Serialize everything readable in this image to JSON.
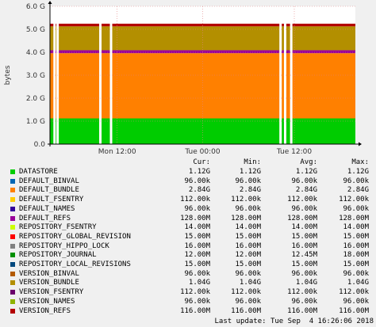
{
  "chart_data": {
    "type": "area",
    "title": "",
    "ylabel": "bytes",
    "xlabel": "",
    "ylim": [
      0,
      6.0
    ],
    "y_unit": "G",
    "y_ticks": [
      "0.0",
      "1.0 G",
      "2.0 G",
      "3.0 G",
      "4.0 G",
      "5.0 G",
      "6.0 G"
    ],
    "y_tick_values": [
      0,
      1,
      2,
      3,
      4,
      5,
      6
    ],
    "x_ticks": [
      "Mon 12:00",
      "Tue 00:00",
      "Tue 12:00"
    ],
    "x_tick_positions": [
      0.22,
      0.5,
      0.8
    ],
    "grid": true,
    "gap_positions": [
      0.015,
      0.025,
      0.165,
      0.2,
      0.755,
      0.77,
      0.79
    ],
    "stack_order": [
      "DATASTORE",
      "DEFAULT_BUNDLE",
      "DEFAULT_REFS",
      "VERSION_BUNDLE",
      "VERSION_REFS"
    ],
    "stack_values_g": [
      1.12,
      2.84,
      0.128,
      1.04,
      0.116
    ],
    "headers": {
      "cur": "Cur:",
      "min": "Min:",
      "avg": "Avg:",
      "max": "Max:"
    },
    "series": [
      {
        "name": "DATASTORE",
        "color": "#00cc00",
        "cur": "1.12G",
        "min": "1.12G",
        "avg": "1.12G",
        "max": "1.12G"
      },
      {
        "name": "DEFAULT_BINVAL",
        "color": "#0066b3",
        "cur": "96.00k",
        "min": "96.00k",
        "avg": "96.00k",
        "max": "96.00k"
      },
      {
        "name": "DEFAULT_BUNDLE",
        "color": "#ff8000",
        "cur": "2.84G",
        "min": "2.84G",
        "avg": "2.84G",
        "max": "2.84G"
      },
      {
        "name": "DEFAULT_FSENTRY",
        "color": "#ffcc00",
        "cur": "112.00k",
        "min": "112.00k",
        "avg": "112.00k",
        "max": "112.00k"
      },
      {
        "name": "DEFAULT_NAMES",
        "color": "#330099",
        "cur": "96.00k",
        "min": "96.00k",
        "avg": "96.00k",
        "max": "96.00k"
      },
      {
        "name": "DEFAULT_REFS",
        "color": "#990099",
        "cur": "128.00M",
        "min": "128.00M",
        "avg": "128.00M",
        "max": "128.00M"
      },
      {
        "name": "REPOSITORY_FSENTRY",
        "color": "#ccff00",
        "cur": "14.00M",
        "min": "14.00M",
        "avg": "14.00M",
        "max": "14.00M"
      },
      {
        "name": "REPOSITORY_GLOBAL_REVISION",
        "color": "#ff0000",
        "cur": "15.00M",
        "min": "15.00M",
        "avg": "15.00M",
        "max": "15.00M"
      },
      {
        "name": "REPOSITORY_HIPPO_LOCK",
        "color": "#808080",
        "cur": "16.00M",
        "min": "16.00M",
        "avg": "16.00M",
        "max": "16.00M"
      },
      {
        "name": "REPOSITORY_JOURNAL",
        "color": "#008f00",
        "cur": "12.00M",
        "min": "12.00M",
        "avg": "12.45M",
        "max": "18.00M"
      },
      {
        "name": "REPOSITORY_LOCAL_REVISIONS",
        "color": "#00487d",
        "cur": "15.00M",
        "min": "15.00M",
        "avg": "15.00M",
        "max": "15.00M"
      },
      {
        "name": "VERSION_BINVAL",
        "color": "#b35a00",
        "cur": "96.00k",
        "min": "96.00k",
        "avg": "96.00k",
        "max": "96.00k"
      },
      {
        "name": "VERSION_BUNDLE",
        "color": "#b38f00",
        "cur": "1.04G",
        "min": "1.04G",
        "avg": "1.04G",
        "max": "1.04G"
      },
      {
        "name": "VERSION_FSENTRY",
        "color": "#6b006b",
        "cur": "112.00k",
        "min": "112.00k",
        "avg": "112.00k",
        "max": "112.00k"
      },
      {
        "name": "VERSION_NAMES",
        "color": "#8fb300",
        "cur": "96.00k",
        "min": "96.00k",
        "avg": "96.00k",
        "max": "96.00k"
      },
      {
        "name": "VERSION_REFS",
        "color": "#b30000",
        "cur": "116.00M",
        "min": "116.00M",
        "avg": "116.00M",
        "max": "116.00M"
      }
    ]
  },
  "footer": {
    "last_update": "Last update: Tue Sep  4 16:26:06 2018"
  }
}
